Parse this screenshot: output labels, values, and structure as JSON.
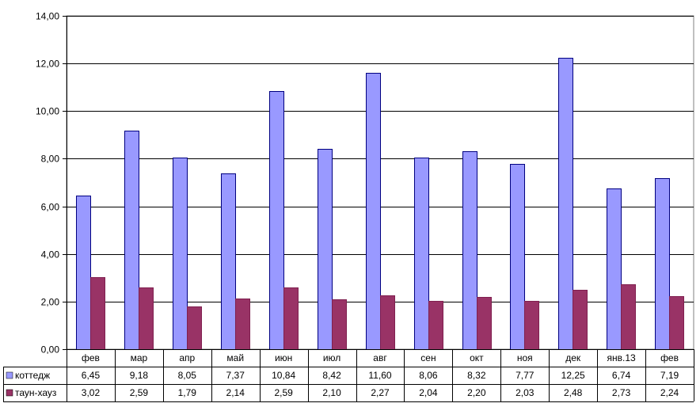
{
  "chart_data": {
    "type": "bar",
    "title": "",
    "xlabel": "",
    "ylabel": "",
    "ylim": [
      0,
      14
    ],
    "yticks": [
      "0,00",
      "2,00",
      "4,00",
      "6,00",
      "8,00",
      "10,00",
      "12,00",
      "14,00"
    ],
    "ytick_values": [
      0,
      2,
      4,
      6,
      8,
      10,
      12,
      14
    ],
    "grid": true,
    "legend_placement": "data-table",
    "categories": [
      "фев",
      "мар",
      "апр",
      "май",
      "июн",
      "июл",
      "авг",
      "сен",
      "окт",
      "ноя",
      "дек",
      "янв.13",
      "фев"
    ],
    "series": [
      {
        "name": "коттедж",
        "color": "#9999ff",
        "values": [
          6.45,
          9.18,
          8.05,
          7.37,
          10.84,
          8.42,
          11.6,
          8.06,
          8.32,
          7.77,
          12.25,
          6.74,
          7.19
        ],
        "labels": [
          "6,45",
          "9,18",
          "8,05",
          "7,37",
          "10,84",
          "8,42",
          "11,60",
          "8,06",
          "8,32",
          "7,77",
          "12,25",
          "6,74",
          "7,19"
        ]
      },
      {
        "name": "таун-хауз",
        "color": "#993366",
        "values": [
          3.02,
          2.59,
          1.79,
          2.14,
          2.59,
          2.1,
          2.27,
          2.04,
          2.2,
          2.03,
          2.48,
          2.73,
          2.24
        ],
        "labels": [
          "3,02",
          "2,59",
          "1,79",
          "2,14",
          "2,59",
          "2,10",
          "2,27",
          "2,04",
          "2,20",
          "2,03",
          "2,48",
          "2,73",
          "2,24"
        ]
      }
    ]
  }
}
